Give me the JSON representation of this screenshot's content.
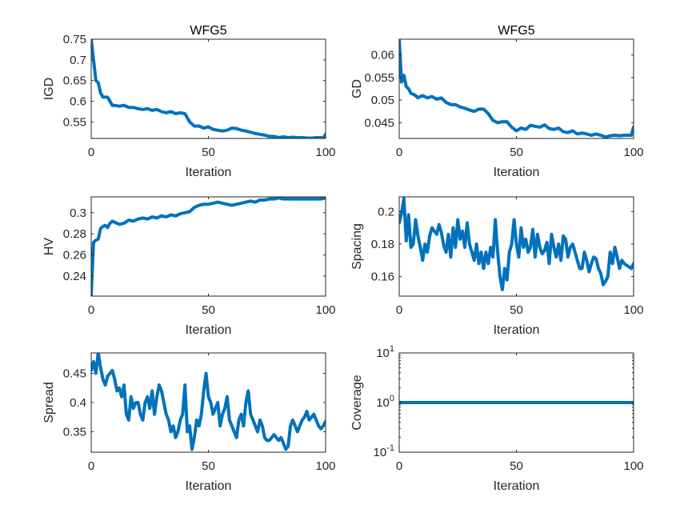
{
  "figure": {
    "background": "#ffffff"
  },
  "chart_data": [
    {
      "id": "igd",
      "type": "line",
      "title": "WFG5",
      "xlabel": "Iteration",
      "ylabel": "IGD",
      "xlim": [
        0,
        100
      ],
      "ylim": [
        0.51,
        0.75
      ],
      "xticks": [
        0,
        50,
        100
      ],
      "yticks": [
        0.55,
        0.6,
        0.65,
        0.7,
        0.75
      ],
      "ytick_labels": [
        "0.55",
        "0.6",
        "0.65",
        "0.7",
        "0.75"
      ],
      "yscale": "linear",
      "grid": false,
      "series": [
        {
          "color": "#0072BD",
          "x": [
            0,
            1,
            2,
            3,
            4,
            5,
            6,
            7,
            8,
            9,
            10,
            12,
            14,
            16,
            18,
            20,
            22,
            24,
            26,
            28,
            30,
            32,
            34,
            36,
            38,
            40,
            42,
            44,
            46,
            48,
            50,
            52,
            54,
            56,
            58,
            60,
            62,
            64,
            66,
            68,
            70,
            72,
            74,
            76,
            78,
            80,
            82,
            84,
            86,
            88,
            90,
            92,
            94,
            96,
            98,
            99,
            100
          ],
          "y": [
            0.75,
            0.7,
            0.65,
            0.645,
            0.62,
            0.61,
            0.61,
            0.61,
            0.6,
            0.59,
            0.59,
            0.588,
            0.59,
            0.585,
            0.585,
            0.582,
            0.58,
            0.582,
            0.578,
            0.58,
            0.575,
            0.572,
            0.575,
            0.57,
            0.572,
            0.57,
            0.55,
            0.54,
            0.54,
            0.535,
            0.538,
            0.532,
            0.53,
            0.528,
            0.53,
            0.535,
            0.534,
            0.53,
            0.528,
            0.525,
            0.522,
            0.52,
            0.518,
            0.515,
            0.515,
            0.512,
            0.514,
            0.512,
            0.513,
            0.512,
            0.512,
            0.511,
            0.511,
            0.512,
            0.512,
            0.511,
            0.52
          ]
        }
      ]
    },
    {
      "id": "gd",
      "type": "line",
      "title": "WFG5",
      "xlabel": "Iteration",
      "ylabel": "GD",
      "xlim": [
        0,
        100
      ],
      "ylim": [
        0.0415,
        0.0635
      ],
      "xticks": [
        0,
        50,
        100
      ],
      "yticks": [
        0.045,
        0.05,
        0.055,
        0.06
      ],
      "ytick_labels": [
        "0.045",
        "0.05",
        "0.055",
        "0.06"
      ],
      "yscale": "linear",
      "grid": false,
      "series": [
        {
          "color": "#0072BD",
          "x": [
            0,
            1,
            2,
            3,
            4,
            5,
            6,
            7,
            8,
            9,
            10,
            12,
            14,
            16,
            18,
            20,
            22,
            24,
            26,
            28,
            30,
            32,
            34,
            36,
            38,
            40,
            42,
            44,
            46,
            48,
            50,
            52,
            54,
            56,
            58,
            60,
            62,
            64,
            66,
            68,
            70,
            72,
            74,
            76,
            78,
            80,
            82,
            84,
            86,
            88,
            90,
            92,
            94,
            96,
            98,
            99,
            100
          ],
          "y": [
            0.0635,
            0.054,
            0.0555,
            0.053,
            0.0525,
            0.0515,
            0.0513,
            0.051,
            0.0505,
            0.0508,
            0.051,
            0.0505,
            0.0508,
            0.0502,
            0.0505,
            0.0495,
            0.049,
            0.049,
            0.0485,
            0.0482,
            0.0478,
            0.0475,
            0.048,
            0.048,
            0.047,
            0.0455,
            0.045,
            0.0452,
            0.0452,
            0.044,
            0.0432,
            0.0438,
            0.0435,
            0.0444,
            0.0442,
            0.044,
            0.0445,
            0.0437,
            0.0435,
            0.0438,
            0.043,
            0.0428,
            0.0432,
            0.0425,
            0.0427,
            0.0425,
            0.0422,
            0.0425,
            0.0422,
            0.0418,
            0.0421,
            0.0422,
            0.0421,
            0.0422,
            0.0422,
            0.0422,
            0.044
          ]
        }
      ]
    },
    {
      "id": "hv",
      "type": "line",
      "title": "",
      "xlabel": "Iteration",
      "ylabel": "HV",
      "xlim": [
        0,
        100
      ],
      "ylim": [
        0.221,
        0.315
      ],
      "xticks": [
        0,
        50,
        100
      ],
      "yticks": [
        0.24,
        0.26,
        0.28,
        0.3
      ],
      "ytick_labels": [
        "0.24",
        "0.26",
        "0.28",
        "0.3"
      ],
      "yscale": "linear",
      "grid": false,
      "series": [
        {
          "color": "#0072BD",
          "x": [
            0,
            1,
            2,
            3,
            4,
            5,
            6,
            7,
            8,
            9,
            10,
            12,
            14,
            16,
            18,
            20,
            22,
            24,
            26,
            28,
            30,
            32,
            34,
            36,
            38,
            40,
            42,
            44,
            46,
            48,
            50,
            52,
            54,
            56,
            58,
            60,
            62,
            64,
            66,
            68,
            70,
            72,
            74,
            76,
            78,
            80,
            82,
            84,
            86,
            88,
            90,
            92,
            94,
            96,
            98,
            100
          ],
          "y": [
            0.222,
            0.272,
            0.274,
            0.275,
            0.285,
            0.287,
            0.288,
            0.286,
            0.29,
            0.292,
            0.291,
            0.289,
            0.29,
            0.293,
            0.292,
            0.294,
            0.295,
            0.294,
            0.296,
            0.295,
            0.297,
            0.296,
            0.298,
            0.297,
            0.299,
            0.3,
            0.301,
            0.305,
            0.307,
            0.308,
            0.308,
            0.309,
            0.31,
            0.309,
            0.308,
            0.307,
            0.308,
            0.309,
            0.31,
            0.311,
            0.31,
            0.312,
            0.312,
            0.313,
            0.313,
            0.314,
            0.313,
            0.313,
            0.313,
            0.313,
            0.313,
            0.313,
            0.313,
            0.313,
            0.313,
            0.314
          ]
        }
      ]
    },
    {
      "id": "spacing",
      "type": "line",
      "title": "",
      "xlabel": "Iteration",
      "ylabel": "Spacing",
      "xlim": [
        0,
        100
      ],
      "ylim": [
        0.148,
        0.209
      ],
      "xticks": [
        0,
        50,
        100
      ],
      "yticks": [
        0.16,
        0.18,
        0.2
      ],
      "ytick_labels": [
        "0.16",
        "0.18",
        "0.2"
      ],
      "yscale": "linear",
      "grid": false,
      "series": [
        {
          "color": "#0072BD",
          "x": [
            0,
            1,
            2,
            3,
            4,
            5,
            6,
            7,
            8,
            9,
            10,
            11,
            12,
            13,
            14,
            15,
            16,
            17,
            18,
            19,
            20,
            21,
            22,
            23,
            24,
            25,
            26,
            27,
            28,
            29,
            30,
            31,
            32,
            33,
            34,
            35,
            36,
            37,
            38,
            39,
            40,
            41,
            42,
            43,
            44,
            45,
            46,
            47,
            48,
            49,
            50,
            51,
            52,
            53,
            54,
            55,
            56,
            57,
            58,
            59,
            60,
            61,
            62,
            63,
            64,
            65,
            66,
            67,
            68,
            69,
            70,
            71,
            72,
            73,
            74,
            75,
            76,
            77,
            78,
            79,
            80,
            81,
            82,
            83,
            84,
            85,
            86,
            87,
            88,
            89,
            90,
            91,
            92,
            93,
            94,
            95,
            96,
            97,
            98,
            99,
            100
          ],
          "y": [
            0.193,
            0.199,
            0.208,
            0.182,
            0.198,
            0.178,
            0.18,
            0.195,
            0.185,
            0.178,
            0.17,
            0.18,
            0.175,
            0.185,
            0.19,
            0.188,
            0.186,
            0.192,
            0.187,
            0.179,
            0.175,
            0.186,
            0.172,
            0.19,
            0.178,
            0.195,
            0.183,
            0.188,
            0.178,
            0.193,
            0.18,
            0.175,
            0.17,
            0.18,
            0.168,
            0.175,
            0.165,
            0.175,
            0.168,
            0.178,
            0.172,
            0.195,
            0.175,
            0.16,
            0.152,
            0.165,
            0.158,
            0.175,
            0.18,
            0.195,
            0.18,
            0.172,
            0.19,
            0.178,
            0.183,
            0.175,
            0.178,
            0.189,
            0.172,
            0.186,
            0.178,
            0.174,
            0.176,
            0.181,
            0.168,
            0.186,
            0.178,
            0.172,
            0.18,
            0.17,
            0.185,
            0.183,
            0.172,
            0.178,
            0.18,
            0.175,
            0.17,
            0.165,
            0.165,
            0.175,
            0.17,
            0.163,
            0.168,
            0.172,
            0.171,
            0.165,
            0.162,
            0.155,
            0.157,
            0.16,
            0.175,
            0.168,
            0.178,
            0.172,
            0.165,
            0.17,
            0.168,
            0.167,
            0.166,
            0.165,
            0.168
          ]
        }
      ]
    },
    {
      "id": "spread",
      "type": "line",
      "title": "",
      "xlabel": "Iteration",
      "ylabel": "Spread",
      "xlim": [
        0,
        100
      ],
      "ylim": [
        0.315,
        0.485
      ],
      "xticks": [
        0,
        50,
        100
      ],
      "yticks": [
        0.35,
        0.4,
        0.45
      ],
      "ytick_labels": [
        "0.35",
        "0.4",
        "0.45"
      ],
      "yscale": "linear",
      "grid": false,
      "series": [
        {
          "color": "#0072BD",
          "x": [
            0,
            1,
            2,
            3,
            4,
            5,
            6,
            7,
            8,
            9,
            10,
            11,
            12,
            13,
            14,
            15,
            16,
            17,
            18,
            19,
            20,
            21,
            22,
            23,
            24,
            25,
            26,
            27,
            28,
            29,
            30,
            31,
            32,
            33,
            34,
            35,
            36,
            37,
            38,
            39,
            40,
            41,
            42,
            43,
            44,
            45,
            46,
            47,
            48,
            49,
            50,
            51,
            52,
            53,
            54,
            55,
            56,
            57,
            58,
            59,
            60,
            61,
            62,
            63,
            64,
            65,
            66,
            67,
            68,
            69,
            70,
            71,
            72,
            73,
            74,
            75,
            76,
            77,
            78,
            79,
            80,
            81,
            82,
            83,
            84,
            85,
            86,
            87,
            88,
            89,
            90,
            91,
            92,
            93,
            94,
            95,
            96,
            97,
            98,
            99,
            100
          ],
          "y": [
            0.455,
            0.47,
            0.45,
            0.485,
            0.46,
            0.44,
            0.43,
            0.445,
            0.45,
            0.455,
            0.44,
            0.42,
            0.425,
            0.41,
            0.43,
            0.38,
            0.37,
            0.41,
            0.39,
            0.4,
            0.4,
            0.38,
            0.37,
            0.4,
            0.41,
            0.39,
            0.42,
            0.38,
            0.41,
            0.43,
            0.42,
            0.4,
            0.38,
            0.37,
            0.35,
            0.36,
            0.34,
            0.35,
            0.37,
            0.38,
            0.43,
            0.35,
            0.36,
            0.32,
            0.34,
            0.37,
            0.36,
            0.38,
            0.42,
            0.45,
            0.41,
            0.4,
            0.38,
            0.39,
            0.4,
            0.36,
            0.38,
            0.39,
            0.41,
            0.37,
            0.36,
            0.35,
            0.34,
            0.37,
            0.38,
            0.36,
            0.4,
            0.42,
            0.38,
            0.37,
            0.36,
            0.35,
            0.37,
            0.36,
            0.34,
            0.335,
            0.335,
            0.34,
            0.345,
            0.34,
            0.335,
            0.34,
            0.33,
            0.32,
            0.325,
            0.36,
            0.37,
            0.36,
            0.35,
            0.36,
            0.37,
            0.375,
            0.385,
            0.37,
            0.375,
            0.38,
            0.37,
            0.36,
            0.355,
            0.36,
            0.368
          ]
        }
      ]
    },
    {
      "id": "coverage",
      "type": "line",
      "title": "",
      "xlabel": "Iteration",
      "ylabel": "Coverage",
      "xlim": [
        0,
        100
      ],
      "ylim": [
        0.1,
        10
      ],
      "xticks": [
        0,
        50,
        100
      ],
      "yticks": [
        0.1,
        1,
        10
      ],
      "ytick_labels": [
        {
          "base": "10",
          "exp": "-1"
        },
        {
          "base": "10",
          "exp": "0"
        },
        {
          "base": "10",
          "exp": "1"
        }
      ],
      "yscale": "log",
      "grid": false,
      "series": [
        {
          "color": "#0072BD",
          "x": [
            0,
            100
          ],
          "y": [
            1,
            1
          ]
        }
      ]
    }
  ]
}
